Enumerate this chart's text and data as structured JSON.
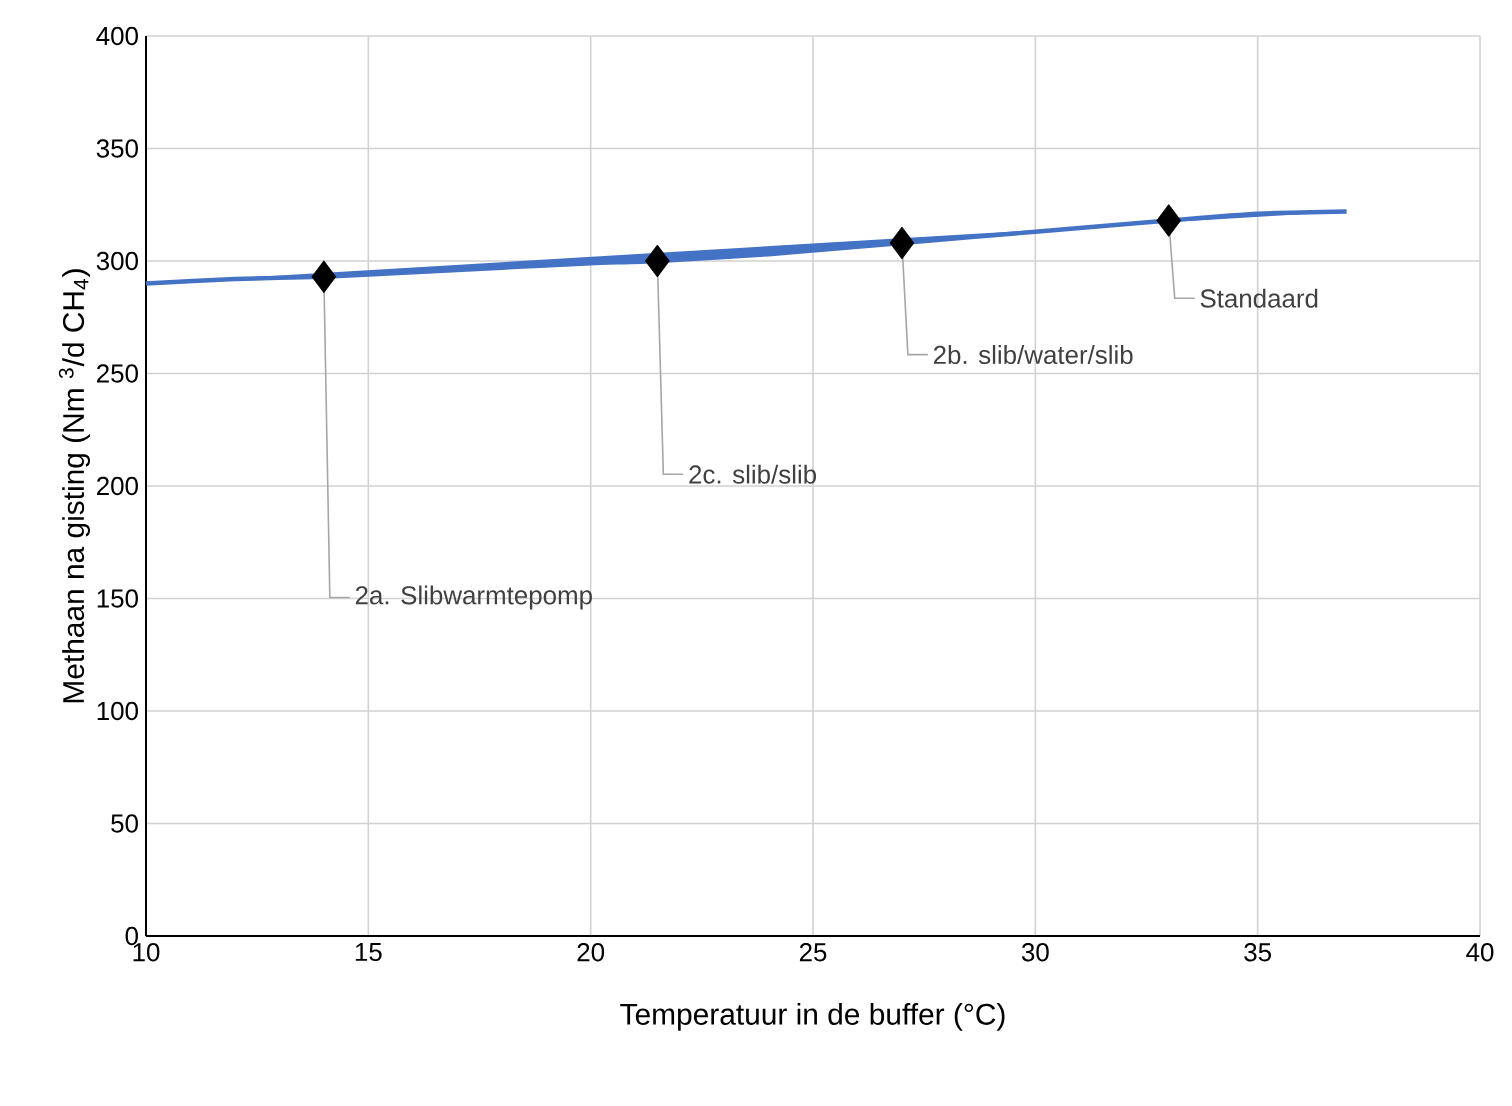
{
  "chart_data": {
    "type": "line",
    "xlabel": "Temperatuur in de buffer (°C)",
    "ylabel": "Methaan na gisting (Nm $^{3}$/d CH$_{4}$)",
    "xlim": [
      10,
      40
    ],
    "ylim": [
      0,
      400
    ],
    "xticks": [
      10,
      15,
      20,
      25,
      30,
      35,
      40
    ],
    "yticks": [
      0,
      50,
      100,
      150,
      200,
      250,
      300,
      350,
      400
    ],
    "grid": true,
    "series": [
      {
        "color": "#4472c4",
        "marker": "none",
        "x": [
          10,
          12,
          14,
          16,
          18,
          20,
          21.5,
          24,
          27,
          30,
          33,
          35,
          37
        ],
        "values": [
          290,
          292,
          293,
          295,
          297,
          299,
          300,
          303,
          308,
          313,
          318,
          321,
          322
        ]
      },
      {
        "type": "scatter",
        "color": "#000000",
        "marker": "diamond",
        "x": [
          14,
          21.5,
          27,
          33
        ],
        "values": [
          293,
          300,
          308,
          318
        ]
      }
    ],
    "annotations": [
      {
        "text": "2a. Slibwarmtepomp",
        "x": 14,
        "y": 293
      },
      {
        "text": "2c. slib/slib",
        "x": 21.5,
        "y": 300
      },
      {
        "text": "2b. slib/water/slib",
        "x": 27,
        "y": 308
      },
      {
        "text": "Standaard",
        "x": 33,
        "y": 318
      }
    ]
  }
}
